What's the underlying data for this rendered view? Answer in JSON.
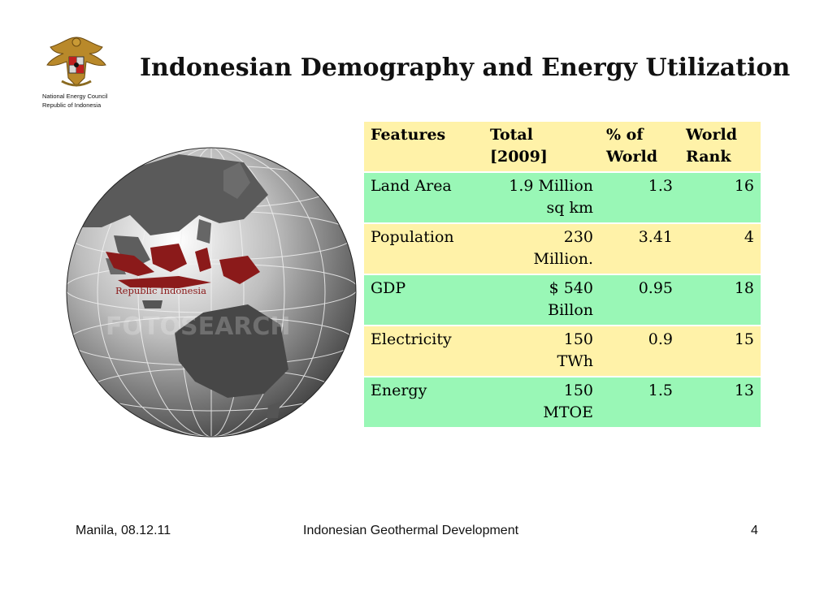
{
  "header": {
    "title": "Indonesian Demography and Energy  Utilization",
    "org_line1": "National Energy Council",
    "org_line2": "Republic of Indonesia",
    "emblem_icon": "garuda-emblem-icon"
  },
  "figure": {
    "caption": "Republic Indonesia",
    "watermark": "FOTOSEARCH",
    "highlight_color": "#8b1a1a"
  },
  "table": {
    "headers": [
      [
        "Features"
      ],
      [
        "Total",
        "[2009]"
      ],
      [
        "% of",
        "World"
      ],
      [
        "World",
        "Rank"
      ]
    ],
    "rows": [
      {
        "feature": "Land Area",
        "total": [
          "1.9 Million",
          "sq km"
        ],
        "pct": "1.3",
        "rank": "16"
      },
      {
        "feature": "Population",
        "total": [
          "230",
          "Million."
        ],
        "pct": "3.41",
        "rank": "4"
      },
      {
        "feature": "GDP",
        "total": [
          "$ 540",
          "Billon"
        ],
        "pct": "0.95",
        "rank": "18"
      },
      {
        "feature": "Electricity",
        "total": [
          "150",
          "TWh"
        ],
        "pct": "0.9",
        "rank": "15"
      },
      {
        "feature": "Energy",
        "total": [
          "150",
          "MTOE"
        ],
        "pct": "1.5",
        "rank": "13"
      }
    ],
    "colors": {
      "green": "#99f7b6",
      "yellow": "#fff2a8"
    }
  },
  "footer": {
    "location_date": "Manila, 08.12.11",
    "center": "Indonesian Geothermal Development",
    "page": "4"
  }
}
